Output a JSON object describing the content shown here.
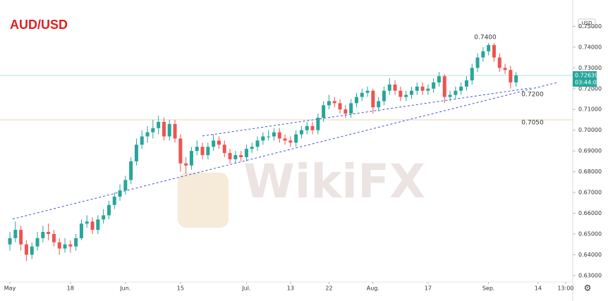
{
  "chart_data": {
    "type": "candlestick",
    "title": "AUD/USD",
    "currency": "USD",
    "watermark": "WikiFX",
    "up_color": "#26a69a",
    "down_color": "#ef5350",
    "x": [
      0,
      1,
      2,
      3,
      4,
      5,
      6,
      7,
      8,
      9,
      10,
      11,
      12,
      13,
      14,
      15,
      16,
      17,
      18,
      19,
      20,
      21,
      22,
      23,
      24,
      25,
      26,
      27,
      28,
      29,
      30,
      31,
      32,
      33,
      34,
      35,
      36,
      37,
      38,
      39,
      40,
      41,
      42,
      43,
      44,
      45,
      46,
      47,
      48,
      49,
      50,
      51,
      52,
      53,
      54,
      55,
      56,
      57,
      58,
      59,
      60,
      61,
      62,
      63,
      64,
      65,
      66,
      67,
      68,
      69,
      70,
      71,
      72,
      73,
      74,
      75,
      76,
      77,
      78,
      79,
      80,
      81,
      82,
      83,
      84,
      85,
      86,
      87,
      88,
      89,
      90,
      91,
      92
    ],
    "open": [
      0.645,
      0.648,
      0.652,
      0.645,
      0.64,
      0.644,
      0.648,
      0.651,
      0.65,
      0.646,
      0.643,
      0.645,
      0.644,
      0.648,
      0.655,
      0.656,
      0.652,
      0.657,
      0.659,
      0.664,
      0.668,
      0.671,
      0.676,
      0.685,
      0.693,
      0.697,
      0.699,
      0.701,
      0.704,
      0.697,
      0.703,
      0.696,
      0.684,
      0.683,
      0.69,
      0.692,
      0.688,
      0.692,
      0.695,
      0.693,
      0.689,
      0.686,
      0.688,
      0.687,
      0.691,
      0.692,
      0.695,
      0.697,
      0.697,
      0.699,
      0.696,
      0.695,
      0.694,
      0.698,
      0.7,
      0.702,
      0.7,
      0.706,
      0.712,
      0.714,
      0.713,
      0.71,
      0.708,
      0.713,
      0.716,
      0.718,
      0.719,
      0.711,
      0.714,
      0.719,
      0.722,
      0.719,
      0.716,
      0.717,
      0.719,
      0.721,
      0.719,
      0.72,
      0.723,
      0.726,
      0.716,
      0.717,
      0.719,
      0.721,
      0.724,
      0.73,
      0.735,
      0.738,
      0.741,
      0.735,
      0.73,
      0.729,
      0.723
    ],
    "high": [
      0.651,
      0.656,
      0.654,
      0.647,
      0.646,
      0.651,
      0.654,
      0.655,
      0.652,
      0.648,
      0.648,
      0.647,
      0.65,
      0.657,
      0.659,
      0.658,
      0.659,
      0.662,
      0.666,
      0.67,
      0.674,
      0.678,
      0.687,
      0.696,
      0.7,
      0.702,
      0.705,
      0.707,
      0.706,
      0.705,
      0.705,
      0.698,
      0.687,
      0.692,
      0.695,
      0.694,
      0.694,
      0.698,
      0.697,
      0.695,
      0.691,
      0.69,
      0.69,
      0.693,
      0.694,
      0.697,
      0.699,
      0.7,
      0.701,
      0.701,
      0.698,
      0.697,
      0.7,
      0.702,
      0.704,
      0.704,
      0.708,
      0.714,
      0.717,
      0.716,
      0.715,
      0.712,
      0.715,
      0.718,
      0.72,
      0.721,
      0.72,
      0.716,
      0.721,
      0.725,
      0.724,
      0.721,
      0.719,
      0.721,
      0.723,
      0.723,
      0.722,
      0.725,
      0.728,
      0.727,
      0.719,
      0.721,
      0.723,
      0.726,
      0.732,
      0.737,
      0.74,
      0.742,
      0.742,
      0.737,
      0.732,
      0.731,
      0.728
    ],
    "low": [
      0.642,
      0.646,
      0.642,
      0.637,
      0.638,
      0.642,
      0.646,
      0.647,
      0.644,
      0.64,
      0.641,
      0.641,
      0.642,
      0.647,
      0.653,
      0.65,
      0.65,
      0.655,
      0.657,
      0.662,
      0.666,
      0.669,
      0.674,
      0.683,
      0.691,
      0.694,
      0.696,
      0.698,
      0.695,
      0.695,
      0.694,
      0.68,
      0.679,
      0.681,
      0.688,
      0.686,
      0.686,
      0.69,
      0.691,
      0.687,
      0.684,
      0.684,
      0.685,
      0.685,
      0.689,
      0.69,
      0.693,
      0.695,
      0.695,
      0.694,
      0.693,
      0.692,
      0.692,
      0.696,
      0.698,
      0.698,
      0.698,
      0.704,
      0.71,
      0.711,
      0.708,
      0.706,
      0.706,
      0.711,
      0.714,
      0.716,
      0.708,
      0.709,
      0.712,
      0.717,
      0.717,
      0.714,
      0.714,
      0.715,
      0.717,
      0.717,
      0.717,
      0.718,
      0.721,
      0.713,
      0.714,
      0.715,
      0.717,
      0.719,
      0.722,
      0.728,
      0.733,
      0.736,
      0.733,
      0.728,
      0.727,
      0.72,
      0.721
    ],
    "close": [
      0.648,
      0.652,
      0.645,
      0.64,
      0.644,
      0.648,
      0.651,
      0.65,
      0.646,
      0.643,
      0.645,
      0.644,
      0.648,
      0.655,
      0.656,
      0.652,
      0.657,
      0.659,
      0.664,
      0.668,
      0.671,
      0.676,
      0.685,
      0.693,
      0.697,
      0.699,
      0.701,
      0.704,
      0.697,
      0.703,
      0.696,
      0.684,
      0.683,
      0.69,
      0.692,
      0.688,
      0.692,
      0.695,
      0.693,
      0.689,
      0.686,
      0.688,
      0.687,
      0.691,
      0.692,
      0.695,
      0.697,
      0.697,
      0.699,
      0.696,
      0.695,
      0.694,
      0.698,
      0.7,
      0.702,
      0.7,
      0.706,
      0.712,
      0.714,
      0.713,
      0.71,
      0.708,
      0.713,
      0.716,
      0.718,
      0.719,
      0.711,
      0.714,
      0.719,
      0.722,
      0.719,
      0.716,
      0.717,
      0.719,
      0.721,
      0.719,
      0.72,
      0.723,
      0.726,
      0.716,
      0.717,
      0.719,
      0.721,
      0.724,
      0.73,
      0.735,
      0.738,
      0.741,
      0.735,
      0.73,
      0.729,
      0.723,
      0.7264
    ],
    "xlim": [
      -1.8,
      102.3
    ],
    "xticks": [
      {
        "value": 0,
        "label": "May"
      },
      {
        "value": 11,
        "label": "18"
      },
      {
        "value": 21,
        "label": "Jun."
      },
      {
        "value": 31,
        "label": "15"
      },
      {
        "value": 43,
        "label": "Jul."
      },
      {
        "value": 51,
        "label": "13"
      },
      {
        "value": 58,
        "label": "22"
      },
      {
        "value": 66,
        "label": "Aug."
      },
      {
        "value": 76,
        "label": "17"
      },
      {
        "value": 87,
        "label": "Sep."
      },
      {
        "value": 96,
        "label": "14"
      },
      {
        "value": 101,
        "label": "13:00"
      }
    ],
    "ylim": [
      0.6269,
      0.7627
    ],
    "yticks": [
      {
        "value": 0.63,
        "label": "0.63000"
      },
      {
        "value": 0.64,
        "label": "0.64000"
      },
      {
        "value": 0.65,
        "label": "0.65000"
      },
      {
        "value": 0.66,
        "label": "0.66000"
      },
      {
        "value": 0.67,
        "label": "0.67000"
      },
      {
        "value": 0.68,
        "label": "0.68000"
      },
      {
        "value": 0.69,
        "label": "0.69000"
      },
      {
        "value": 0.7,
        "label": "0.70000"
      },
      {
        "value": 0.71,
        "label": "0.71000"
      },
      {
        "value": 0.72,
        "label": "0.72000"
      },
      {
        "value": 0.73,
        "label": "0.73000"
      },
      {
        "value": 0.74,
        "label": "0.74000"
      },
      {
        "value": 0.75,
        "label": "0.75000"
      }
    ],
    "last_price": 0.72639,
    "countdown": "03:44:06",
    "levels": [
      {
        "value": 0.72639,
        "color": "#b2dfdb"
      },
      {
        "value": 0.705,
        "color": "#e6d6b0"
      }
    ],
    "trendlines": [
      {
        "x": [
          0.5,
          99.5
        ],
        "y": [
          0.6572,
          0.723
        ],
        "color": "#3f51d6"
      },
      {
        "x": [
          35,
          94.6
        ],
        "y": [
          0.6972,
          0.7203
        ],
        "color": "#3f51d6"
      }
    ],
    "annotations": [
      {
        "value": 0.74,
        "label": "0.7400"
      },
      {
        "value": 0.72,
        "label": "0.7200"
      },
      {
        "value": 0.705,
        "label": "0.7050"
      }
    ]
  }
}
